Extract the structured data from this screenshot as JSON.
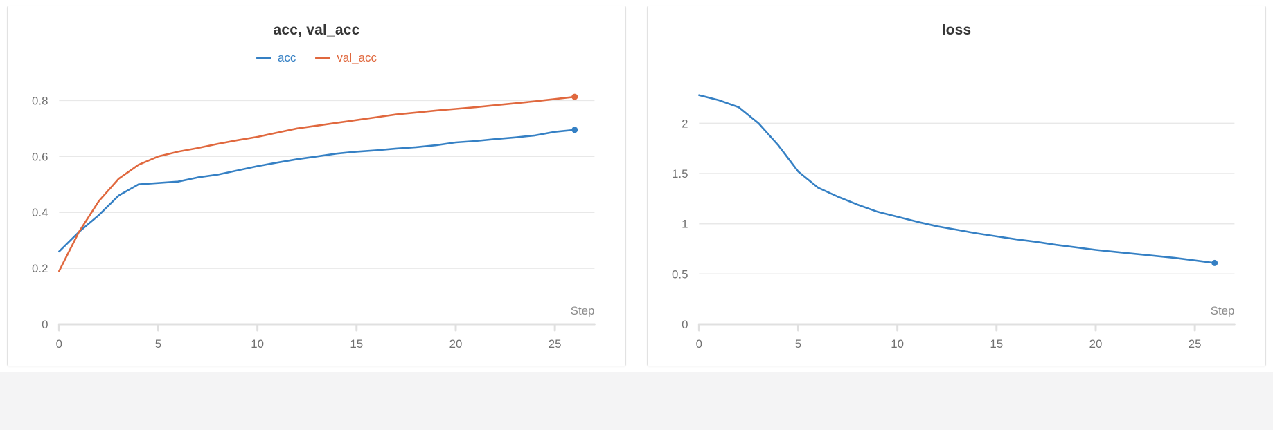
{
  "page": {
    "background": "#ffffff",
    "lower_background": "#f4f4f5"
  },
  "chart_data": [
    {
      "type": "line",
      "title": "acc, val_acc",
      "xlabel": "Step",
      "ylabel": "",
      "xlim": [
        0,
        27
      ],
      "ylim": [
        0,
        0.88
      ],
      "xticks": [
        0,
        5,
        10,
        15,
        20,
        25
      ],
      "yticks": [
        0,
        0.2,
        0.4,
        0.6,
        0.8
      ],
      "grid": true,
      "legend": true,
      "legend_position": "top",
      "x": [
        0,
        1,
        2,
        3,
        4,
        5,
        6,
        7,
        8,
        9,
        10,
        11,
        12,
        13,
        14,
        15,
        16,
        17,
        18,
        19,
        20,
        21,
        22,
        23,
        24,
        25,
        26
      ],
      "series": [
        {
          "name": "acc",
          "color": "#3580c4",
          "values": [
            0.26,
            0.33,
            0.39,
            0.46,
            0.5,
            0.505,
            0.51,
            0.525,
            0.535,
            0.55,
            0.565,
            0.578,
            0.59,
            0.6,
            0.61,
            0.617,
            0.622,
            0.628,
            0.633,
            0.64,
            0.65,
            0.655,
            0.662,
            0.668,
            0.675,
            0.688,
            0.695
          ]
        },
        {
          "name": "val_acc",
          "color": "#e0683e",
          "values": [
            0.19,
            0.33,
            0.44,
            0.52,
            0.57,
            0.6,
            0.617,
            0.63,
            0.645,
            0.658,
            0.67,
            0.685,
            0.7,
            0.71,
            0.72,
            0.73,
            0.74,
            0.75,
            0.757,
            0.764,
            0.77,
            0.776,
            0.783,
            0.79,
            0.797,
            0.805,
            0.813
          ]
        }
      ]
    },
    {
      "type": "line",
      "title": "loss",
      "xlabel": "Step",
      "ylabel": "",
      "xlim": [
        0,
        27
      ],
      "ylim": [
        0,
        2.45
      ],
      "xticks": [
        0,
        5,
        10,
        15,
        20,
        25
      ],
      "yticks": [
        0,
        0.5,
        1,
        1.5,
        2
      ],
      "grid": true,
      "legend": false,
      "legend_position": "none",
      "x": [
        0,
        1,
        2,
        3,
        4,
        5,
        6,
        7,
        8,
        9,
        10,
        11,
        12,
        13,
        14,
        15,
        16,
        17,
        18,
        19,
        20,
        21,
        22,
        23,
        24,
        25,
        26
      ],
      "series": [
        {
          "name": "loss",
          "color": "#3580c4",
          "values": [
            2.28,
            2.23,
            2.16,
            2.0,
            1.78,
            1.52,
            1.36,
            1.27,
            1.19,
            1.12,
            1.07,
            1.02,
            0.975,
            0.94,
            0.905,
            0.875,
            0.845,
            0.82,
            0.79,
            0.765,
            0.74,
            0.72,
            0.7,
            0.68,
            0.66,
            0.635,
            0.61
          ]
        }
      ]
    }
  ]
}
